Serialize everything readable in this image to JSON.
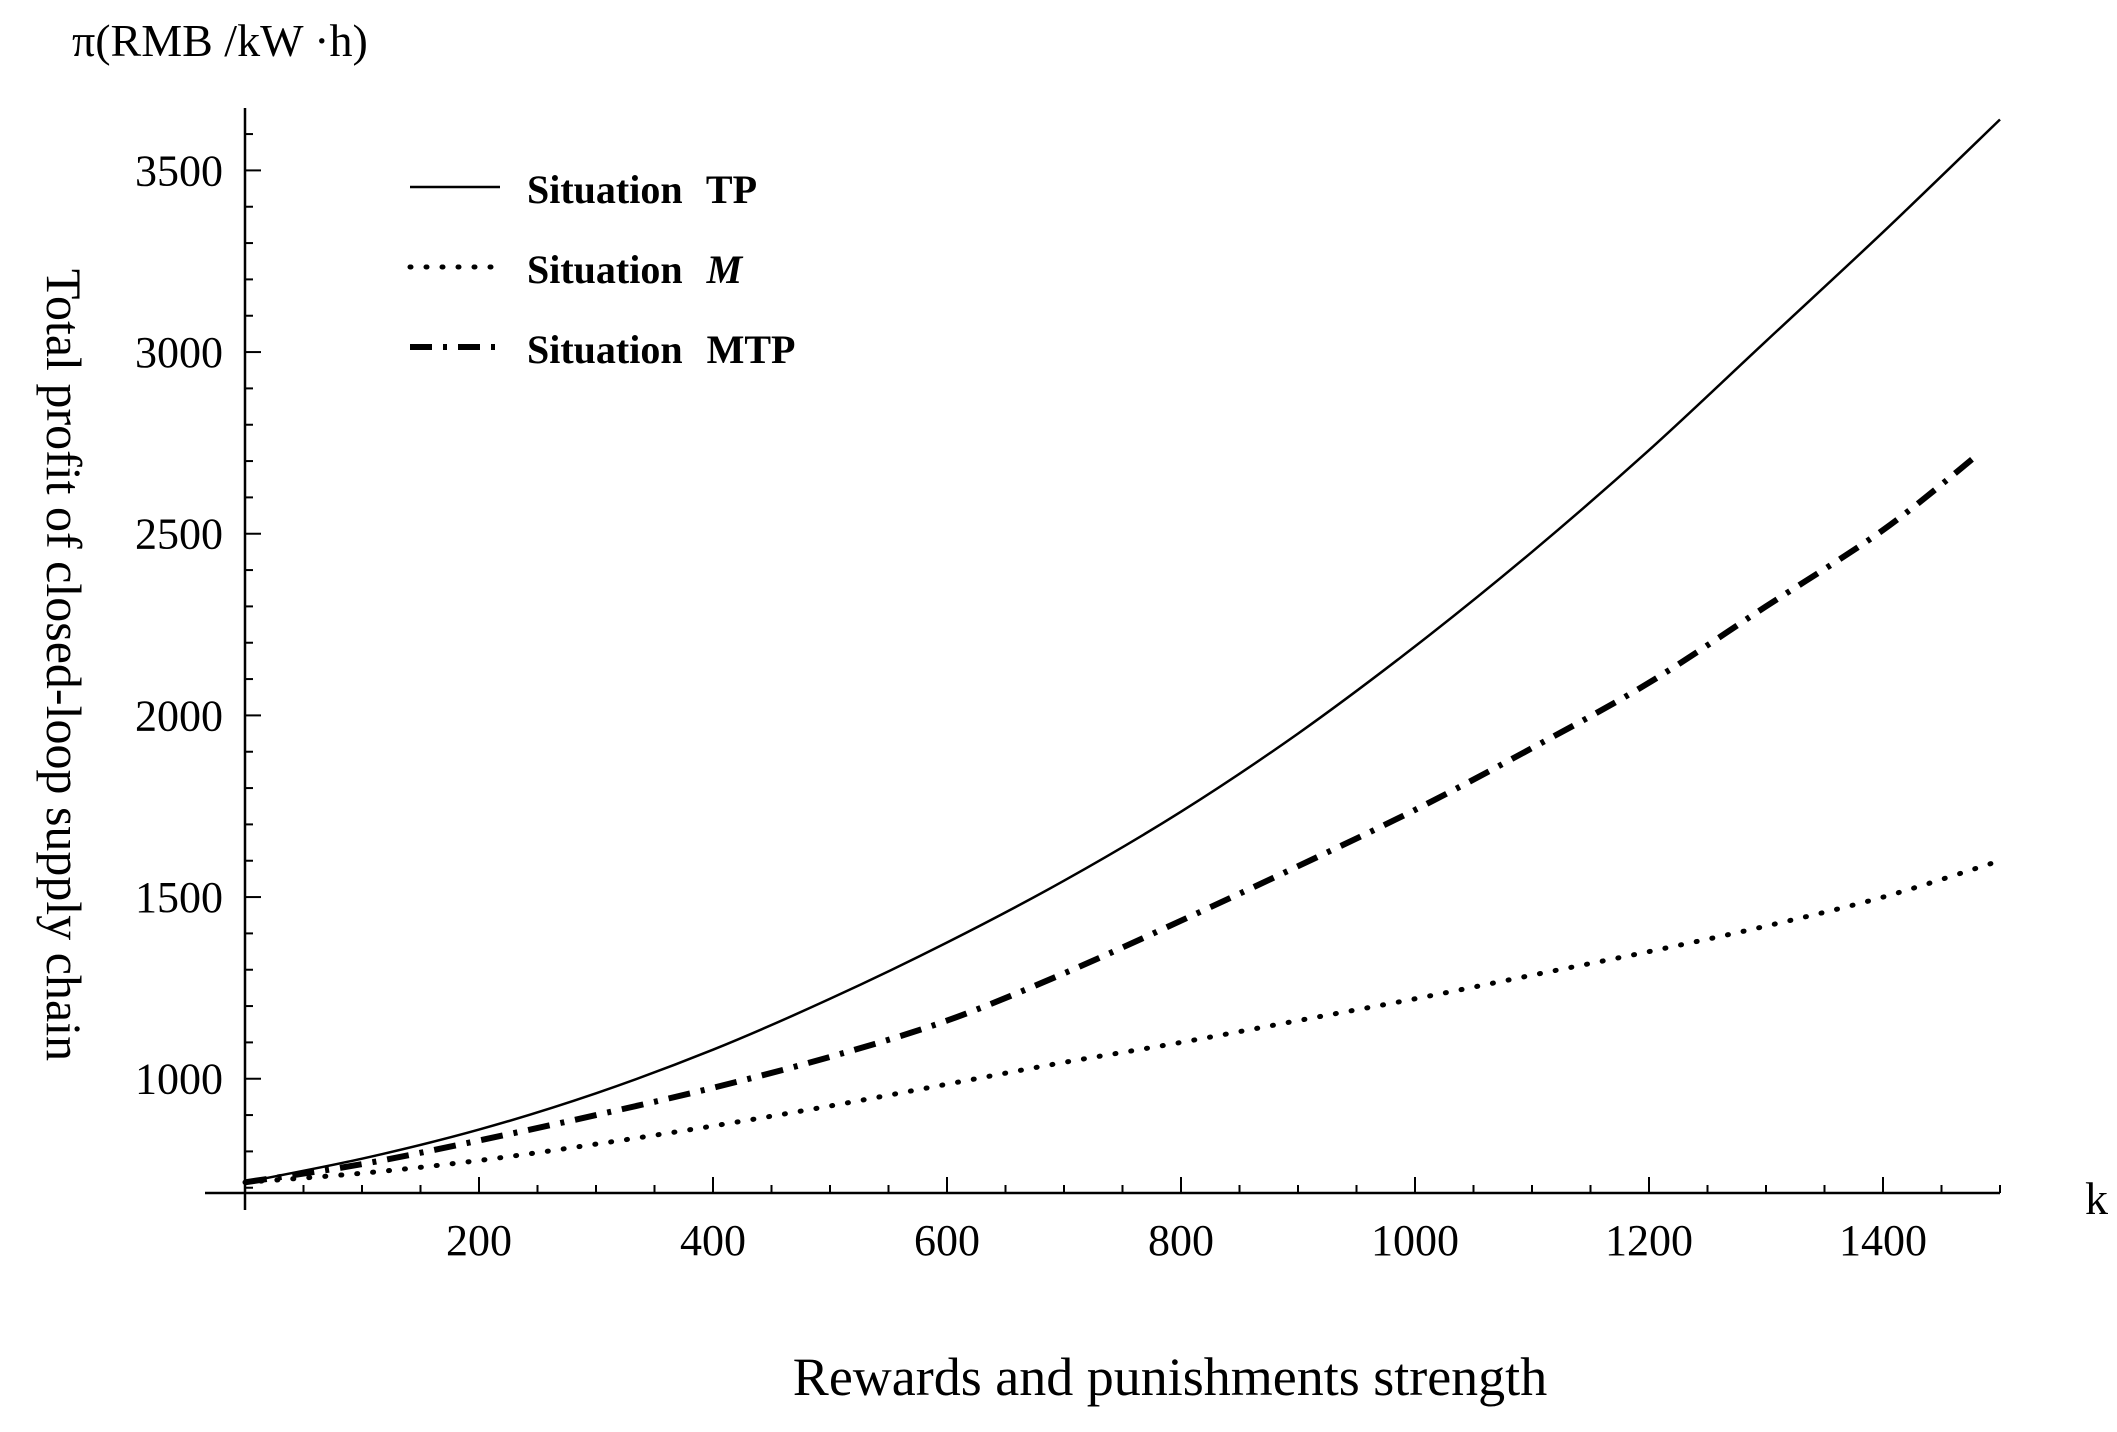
{
  "chart_data": {
    "type": "line",
    "title": "",
    "corner_label": "π(RMB  /kW ·h)",
    "xlabel": "Rewards and punishments strength",
    "ylabel": "Total profit of closed-loop supply chain",
    "x_axis_letter": "k",
    "xlim": [
      0,
      1500
    ],
    "ylim": [
      680,
      3680
    ],
    "x_ticks": [
      200,
      400,
      600,
      800,
      1000,
      1200,
      1400
    ],
    "y_ticks": [
      1000,
      1500,
      2000,
      2500,
      3000,
      3500
    ],
    "x_minor_step": 50,
    "y_minor_step": 100,
    "grid": false,
    "legend_position": "top-left",
    "series": [
      {
        "name": "Situation TP",
        "legend_prefix": "Situation ",
        "legend_suffix": "TP",
        "suffix_italic": false,
        "style": "solid",
        "x": [
          0,
          100,
          200,
          300,
          400,
          500,
          600,
          700,
          800,
          900,
          1000,
          1100,
          1200,
          1300,
          1400,
          1500
        ],
        "values": [
          715,
          780,
          860,
          960,
          1080,
          1220,
          1375,
          1545,
          1735,
          1950,
          2190,
          2450,
          2730,
          3030,
          3330,
          3640
        ]
      },
      {
        "name": "Situation M",
        "legend_prefix": "Situation ",
        "legend_suffix": "M",
        "suffix_italic": true,
        "style": "dotted",
        "x": [
          0,
          100,
          200,
          300,
          400,
          500,
          600,
          700,
          800,
          900,
          1000,
          1100,
          1200,
          1300,
          1400,
          1500
        ],
        "values": [
          715,
          740,
          775,
          820,
          870,
          925,
          985,
          1045,
          1100,
          1160,
          1220,
          1285,
          1350,
          1420,
          1500,
          1600
        ]
      },
      {
        "name": "Situation MTP",
        "legend_prefix": "Situation ",
        "legend_suffix": "MTP",
        "suffix_italic": false,
        "style": "dashdot",
        "x": [
          0,
          100,
          200,
          300,
          400,
          500,
          600,
          700,
          800,
          900,
          1000,
          1100,
          1200,
          1300,
          1400,
          1480
        ],
        "values": [
          715,
          765,
          830,
          900,
          975,
          1060,
          1160,
          1290,
          1435,
          1585,
          1740,
          1910,
          2090,
          2300,
          2510,
          2715
        ]
      }
    ]
  }
}
